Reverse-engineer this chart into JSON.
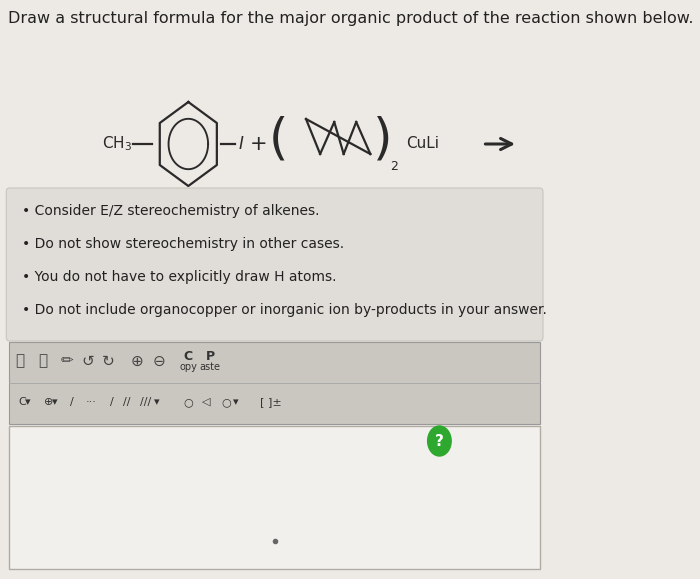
{
  "title": "Draw a structural formula for the major organic product of the reaction shown below.",
  "title_fontsize": 11.5,
  "background_color": "#edeae5",
  "box_color": "#e4e1dc",
  "bullet_points": [
    "Consider E/Z stereochemistry of alkenes.",
    "Do not show stereochemistry in other cases.",
    "You do not have to explicitly draw H atoms.",
    "Do not include organocopper or inorganic ion by-products in your answer."
  ],
  "bullet_fontsize": 10,
  "text_color": "#222222",
  "line_color": "#2a2a2a",
  "toolbar_bg": "#cac7c0",
  "answer_box_bg": "#f2f0ed",
  "answer_box_border": "#b0aba3",
  "bullet_box_border": "#c8c4be"
}
